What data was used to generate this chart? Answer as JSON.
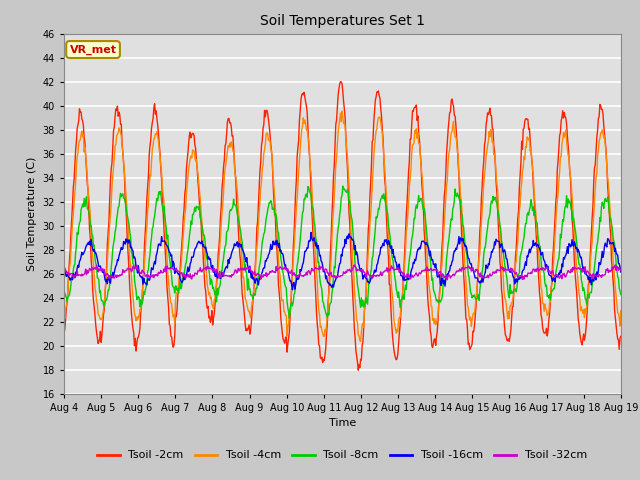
{
  "title": "Soil Temperatures Set 1",
  "xlabel": "Time",
  "ylabel": "Soil Temperature (C)",
  "ylim": [
    16,
    46
  ],
  "yticks": [
    16,
    18,
    20,
    22,
    24,
    26,
    28,
    30,
    32,
    34,
    36,
    38,
    40,
    42,
    44,
    46
  ],
  "x_tick_labels": [
    "Aug 4",
    "Aug 5",
    "Aug 6",
    "Aug 7",
    "Aug 8",
    "Aug 9",
    "Aug 10",
    "Aug 11",
    "Aug 12",
    "Aug 13",
    "Aug 14",
    "Aug 15",
    "Aug 16",
    "Aug 17",
    "Aug 18",
    "Aug 19"
  ],
  "annotation_text": "VR_met",
  "annotation_color": "#cc0000",
  "annotation_bg": "#ffffcc",
  "annotation_border": "#aa8800",
  "series_colors": [
    "#ff2200",
    "#ff8800",
    "#00cc00",
    "#0000ee",
    "#cc00cc"
  ],
  "series_labels": [
    "Tsoil -2cm",
    "Tsoil -4cm",
    "Tsoil -8cm",
    "Tsoil -16cm",
    "Tsoil -32cm"
  ],
  "fig_bg": "#c8c8c8",
  "plot_bg": "#e0e0e0",
  "grid_color": "#ffffff",
  "linewidth": 1.0,
  "title_fontsize": 10,
  "label_fontsize": 8,
  "tick_fontsize": 7,
  "legend_fontsize": 8
}
